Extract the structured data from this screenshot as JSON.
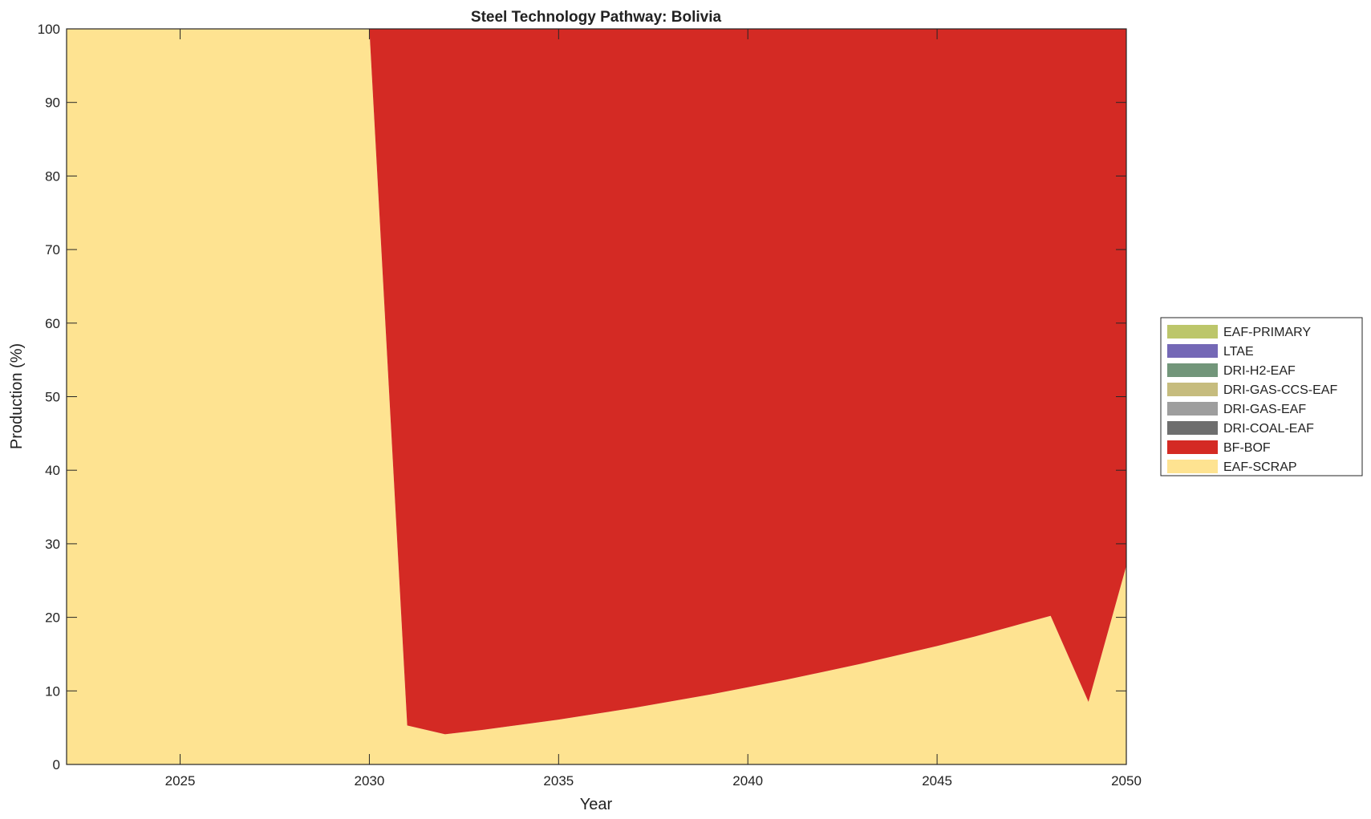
{
  "chart_data": {
    "type": "area",
    "stacked": true,
    "title": "Steel Technology Pathway: Bolivia",
    "xlabel": "Year",
    "ylabel": "Production (%)",
    "xlim": [
      2022,
      2050
    ],
    "ylim": [
      0,
      100
    ],
    "xticks": [
      2025,
      2030,
      2035,
      2040,
      2045,
      2050
    ],
    "yticks": [
      0,
      10,
      20,
      30,
      40,
      50,
      60,
      70,
      80,
      90,
      100
    ],
    "grid": false,
    "legend_placement": "right",
    "x": [
      2022,
      2023,
      2024,
      2025,
      2026,
      2027,
      2028,
      2029,
      2030,
      2031,
      2032,
      2033,
      2034,
      2035,
      2036,
      2037,
      2038,
      2039,
      2040,
      2041,
      2042,
      2043,
      2044,
      2045,
      2046,
      2047,
      2048,
      2049,
      2050
    ],
    "series": [
      {
        "name": "EAF-SCRAP",
        "color": "#FEE391",
        "values": [
          100,
          100,
          100,
          100,
          100,
          100,
          100,
          100,
          100,
          5.3,
          4.1,
          4.7,
          5.4,
          6.1,
          6.9,
          7.7,
          8.6,
          9.5,
          10.5,
          11.5,
          12.6,
          13.7,
          14.9,
          16.1,
          17.4,
          18.8,
          20.2,
          8.5,
          27.0
        ]
      },
      {
        "name": "BF-BOF",
        "color": "#D42A24",
        "values": [
          0,
          0,
          0,
          0,
          0,
          0,
          0,
          0,
          0,
          94.7,
          95.9,
          95.3,
          94.6,
          93.9,
          93.1,
          92.3,
          91.4,
          90.5,
          89.5,
          88.5,
          87.4,
          86.3,
          85.1,
          83.9,
          82.6,
          81.2,
          79.8,
          91.5,
          73.0
        ]
      },
      {
        "name": "DRI-COAL-EAF",
        "color": "#6E6E6E",
        "values": [
          0,
          0,
          0,
          0,
          0,
          0,
          0,
          0,
          0,
          0,
          0,
          0,
          0,
          0,
          0,
          0,
          0,
          0,
          0,
          0,
          0,
          0,
          0,
          0,
          0,
          0,
          0,
          0,
          0
        ]
      },
      {
        "name": "DRI-GAS-EAF",
        "color": "#9E9E9E",
        "values": [
          0,
          0,
          0,
          0,
          0,
          0,
          0,
          0,
          0,
          0,
          0,
          0,
          0,
          0,
          0,
          0,
          0,
          0,
          0,
          0,
          0,
          0,
          0,
          0,
          0,
          0,
          0,
          0,
          0
        ]
      },
      {
        "name": "DRI-GAS-CCS-EAF",
        "color": "#C6BC7E",
        "values": [
          0,
          0,
          0,
          0,
          0,
          0,
          0,
          0,
          0,
          0,
          0,
          0,
          0,
          0,
          0,
          0,
          0,
          0,
          0,
          0,
          0,
          0,
          0,
          0,
          0,
          0,
          0,
          0,
          0
        ]
      },
      {
        "name": "DRI-H2-EAF",
        "color": "#72967A",
        "values": [
          0,
          0,
          0,
          0,
          0,
          0,
          0,
          0,
          0,
          0,
          0,
          0,
          0,
          0,
          0,
          0,
          0,
          0,
          0,
          0,
          0,
          0,
          0,
          0,
          0,
          0,
          0,
          0,
          0
        ]
      },
      {
        "name": "LTAE",
        "color": "#7468B6",
        "values": [
          0,
          0,
          0,
          0,
          0,
          0,
          0,
          0,
          0,
          0,
          0,
          0,
          0,
          0,
          0,
          0,
          0,
          0,
          0,
          0,
          0,
          0,
          0,
          0,
          0,
          0,
          0,
          0,
          0
        ]
      },
      {
        "name": "EAF-PRIMARY",
        "color": "#BCC66A",
        "values": [
          0,
          0,
          0,
          0,
          0,
          0,
          0,
          0,
          0,
          0,
          0,
          0,
          0,
          0,
          0,
          0,
          0,
          0,
          0,
          0,
          0,
          0,
          0,
          0,
          0,
          0,
          0,
          0,
          0
        ]
      }
    ],
    "legend_order": [
      "EAF-PRIMARY",
      "LTAE",
      "DRI-H2-EAF",
      "DRI-GAS-CCS-EAF",
      "DRI-GAS-EAF",
      "DRI-COAL-EAF",
      "BF-BOF",
      "EAF-SCRAP"
    ]
  }
}
